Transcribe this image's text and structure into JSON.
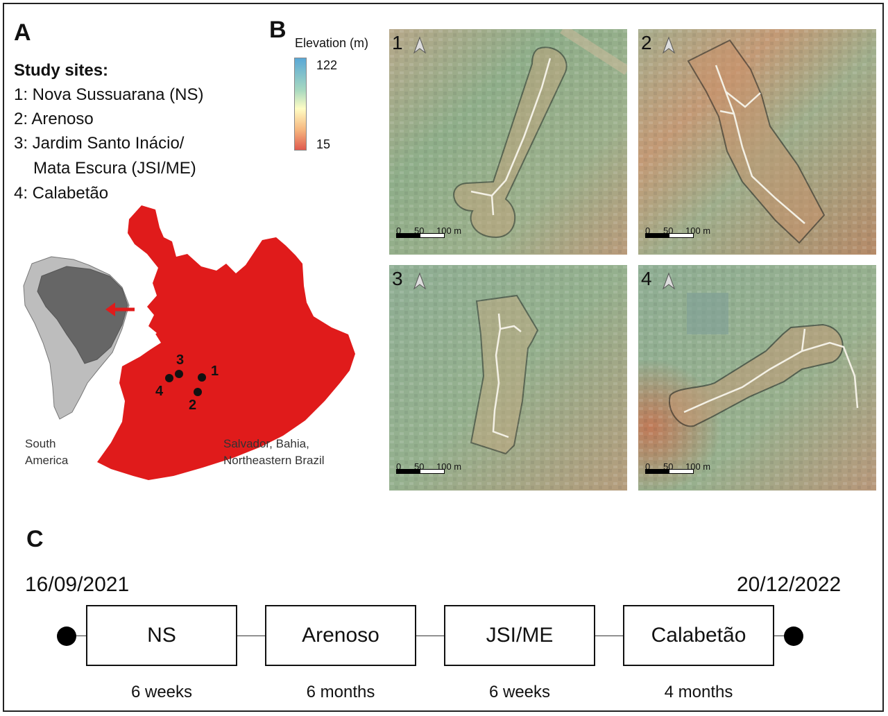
{
  "panel_a": {
    "letter": "A",
    "sites_title": "Study sites:",
    "sites": [
      "1: Nova Sussuarana (NS)",
      "2: Arenoso",
      "3: Jardim Santo Inácio/",
      "Mata Escura (JSI/ME)",
      "4: Calabetão"
    ],
    "inset_label_line1": "South",
    "inset_label_line2": "America",
    "city_label_line1": "Salvador, Bahia,",
    "city_label_line2": "Northeastern Brazil",
    "point_labels": [
      "1",
      "2",
      "3",
      "4"
    ],
    "colors": {
      "city": "#e01b1b",
      "brazil": "#666666",
      "continent": "#bdbdbd",
      "arrow": "#e01b1b"
    }
  },
  "panel_b": {
    "letter": "B",
    "legend": {
      "title": "Elevation (m)",
      "max": "122",
      "min": "15"
    },
    "tiles": [
      {
        "number": "1",
        "scale": [
          "0",
          "50",
          "100 m"
        ]
      },
      {
        "number": "2",
        "scale": [
          "0",
          "50",
          "100 m"
        ]
      },
      {
        "number": "3",
        "scale": [
          "0",
          "50",
          "100 m"
        ]
      },
      {
        "number": "4",
        "scale": [
          "0",
          "50",
          "100 m"
        ]
      }
    ]
  },
  "panel_c": {
    "letter": "C",
    "start_date": "16/09/2021",
    "end_date": "20/12/2022",
    "phases": [
      {
        "name": "NS",
        "duration": "6 weeks"
      },
      {
        "name": "Arenoso",
        "duration": "6 months"
      },
      {
        "name": "JSI/ME",
        "duration": "6 weeks"
      },
      {
        "name": "Calabetão",
        "duration": "4 months"
      }
    ]
  }
}
